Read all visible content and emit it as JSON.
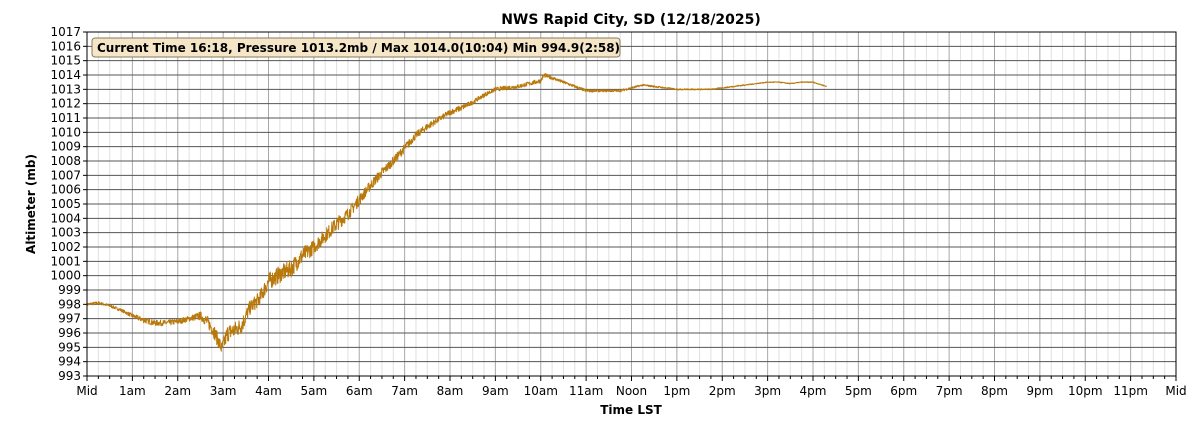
{
  "chart_data": {
    "type": "line",
    "title": "NWS Rapid City, SD (12/18/2025)",
    "xlabel": "Time LST",
    "ylabel": "Altimeter (mb)",
    "annotation": "Current Time 16:18, Pressure 1013.2mb / Max 1014.0(10:04) Min 994.9(2:58)",
    "xlim": [
      0,
      24
    ],
    "ylim": [
      993,
      1017
    ],
    "x_ticks": [
      0,
      1,
      2,
      3,
      4,
      5,
      6,
      7,
      8,
      9,
      10,
      11,
      12,
      13,
      14,
      15,
      16,
      17,
      18,
      19,
      20,
      21,
      22,
      23,
      24
    ],
    "x_tick_labels": [
      "Mid",
      "1am",
      "2am",
      "3am",
      "4am",
      "5am",
      "6am",
      "7am",
      "8am",
      "9am",
      "10am",
      "11am",
      "Noon",
      "1pm",
      "2pm",
      "3pm",
      "4pm",
      "5pm",
      "6pm",
      "7pm",
      "8pm",
      "9pm",
      "10pm",
      "11pm",
      "Mid"
    ],
    "y_ticks": [
      993,
      994,
      995,
      996,
      997,
      998,
      999,
      1000,
      1001,
      1002,
      1003,
      1004,
      1005,
      1006,
      1007,
      1008,
      1009,
      1010,
      1011,
      1012,
      1013,
      1014,
      1015,
      1016,
      1017
    ],
    "grid": true,
    "line_color": "#b8780a",
    "series": [
      {
        "x": [
          0.0,
          0.25,
          0.5,
          0.75,
          1.0,
          1.25,
          1.5,
          1.75,
          2.0,
          2.25,
          2.5,
          2.65,
          2.8,
          2.97,
          3.1,
          3.25,
          3.4,
          3.6,
          3.8,
          4.0,
          4.25,
          4.5,
          4.75,
          5.0,
          5.25,
          5.5,
          5.75,
          6.0,
          6.25,
          6.5,
          6.75,
          7.0,
          7.25,
          7.5,
          7.75,
          8.0,
          8.25,
          8.5,
          8.75,
          9.0,
          9.25,
          9.5,
          9.75,
          10.0,
          10.07,
          10.25,
          10.5,
          10.75,
          11.0,
          11.25,
          11.5,
          11.75,
          12.0,
          12.25,
          12.5,
          12.75,
          13.0,
          13.25,
          13.5,
          13.75,
          14.0,
          14.25,
          14.5,
          14.75,
          15.0,
          15.25,
          15.5,
          15.75,
          16.0,
          16.3
        ],
        "y": [
          998.0,
          998.1,
          997.9,
          997.6,
          997.2,
          996.9,
          996.7,
          996.7,
          996.8,
          997.0,
          997.2,
          996.8,
          996.1,
          994.9,
          996.0,
          996.2,
          996.5,
          997.8,
          998.4,
          999.6,
          1000.1,
          1000.5,
          1001.4,
          1002.0,
          1002.8,
          1003.6,
          1004.3,
          1005.3,
          1006.3,
          1007.2,
          1008.0,
          1008.9,
          1009.8,
          1010.4,
          1010.9,
          1011.4,
          1011.7,
          1012.1,
          1012.6,
          1013.0,
          1013.1,
          1013.2,
          1013.4,
          1013.6,
          1014.0,
          1013.8,
          1013.5,
          1013.2,
          1012.9,
          1012.9,
          1012.9,
          1012.9,
          1013.1,
          1013.3,
          1013.2,
          1013.1,
          1013.0,
          1013.0,
          1013.0,
          1013.0,
          1013.1,
          1013.2,
          1013.3,
          1013.4,
          1013.5,
          1013.5,
          1013.4,
          1013.5,
          1013.5,
          1013.2
        ],
        "noise": [
          0.1,
          0.1,
          0.1,
          0.1,
          0.15,
          0.2,
          0.2,
          0.2,
          0.2,
          0.2,
          0.3,
          0.4,
          0.5,
          0.5,
          0.6,
          0.6,
          0.6,
          0.5,
          0.5,
          0.6,
          0.6,
          0.6,
          0.6,
          0.5,
          0.5,
          0.5,
          0.45,
          0.4,
          0.35,
          0.35,
          0.3,
          0.3,
          0.25,
          0.25,
          0.2,
          0.2,
          0.2,
          0.15,
          0.15,
          0.15,
          0.15,
          0.15,
          0.15,
          0.15,
          0.15,
          0.12,
          0.1,
          0.1,
          0.1,
          0.08,
          0.08,
          0.08,
          0.08,
          0.06,
          0.06,
          0.05,
          0.05,
          0.04,
          0.04,
          0.04,
          0.04,
          0.04,
          0.04,
          0.03,
          0.03,
          0.03,
          0.03,
          0.03,
          0.03,
          0.03
        ]
      }
    ]
  }
}
